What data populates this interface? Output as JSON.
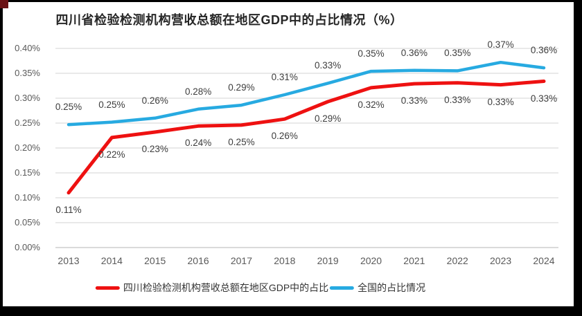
{
  "frame": {
    "background_color": "#000000",
    "corner_marker_color": "#6a1114",
    "chart_background_color": "#ffffff"
  },
  "chart_data": {
    "type": "line",
    "title": "四川省检验检测机构营收总额在地区GDP中的占比情况（%）",
    "categories": [
      "2013",
      "2014",
      "2015",
      "2016",
      "2017",
      "2018",
      "2019",
      "2020",
      "2021",
      "2022",
      "2023",
      "2024"
    ],
    "y_axis": {
      "min": 0,
      "max": 0.4,
      "tick_step": 0.05,
      "tick_labels": [
        "0.40%",
        "0.35%",
        "0.30%",
        "0.25%",
        "0.20%",
        "0.15%",
        "0.10%",
        "0.05%",
        "0.00%"
      ],
      "unit": "%"
    },
    "grid": "horizontal",
    "gridline_color": "#dcdcdc",
    "baseline_color": "#c3c3c3",
    "legend_position": "bottom",
    "series": [
      {
        "name": "四川检验检测机构营收总额在地区GDP中的占比",
        "color": "#ee1111",
        "label_position": "below",
        "values": [
          0.11,
          0.22,
          0.23,
          0.24,
          0.25,
          0.26,
          0.29,
          0.32,
          0.33,
          0.33,
          0.33,
          0.33
        ],
        "labels": [
          "0.11%",
          "0.22%",
          "0.23%",
          "0.24%",
          "0.25%",
          "0.26%",
          "0.29%",
          "0.32%",
          "0.33%",
          "0.33%",
          "0.33%",
          "0.33%"
        ],
        "plot_values": [
          0.11,
          0.221,
          0.232,
          0.244,
          0.246,
          0.258,
          0.293,
          0.321,
          0.329,
          0.331,
          0.327,
          0.334
        ]
      },
      {
        "name": "全国的占比情况",
        "color": "#27aae1",
        "label_position": "above",
        "values": [
          0.25,
          0.25,
          0.26,
          0.28,
          0.29,
          0.31,
          0.33,
          0.35,
          0.36,
          0.35,
          0.37,
          0.36
        ],
        "labels": [
          "0.25%",
          "0.25%",
          "0.26%",
          "0.28%",
          "0.29%",
          "0.31%",
          "0.33%",
          "0.35%",
          "0.36%",
          "0.35%",
          "0.37%",
          "0.36%"
        ],
        "plot_values": [
          0.247,
          0.252,
          0.26,
          0.278,
          0.286,
          0.307,
          0.33,
          0.354,
          0.356,
          0.355,
          0.372,
          0.361
        ]
      }
    ]
  }
}
